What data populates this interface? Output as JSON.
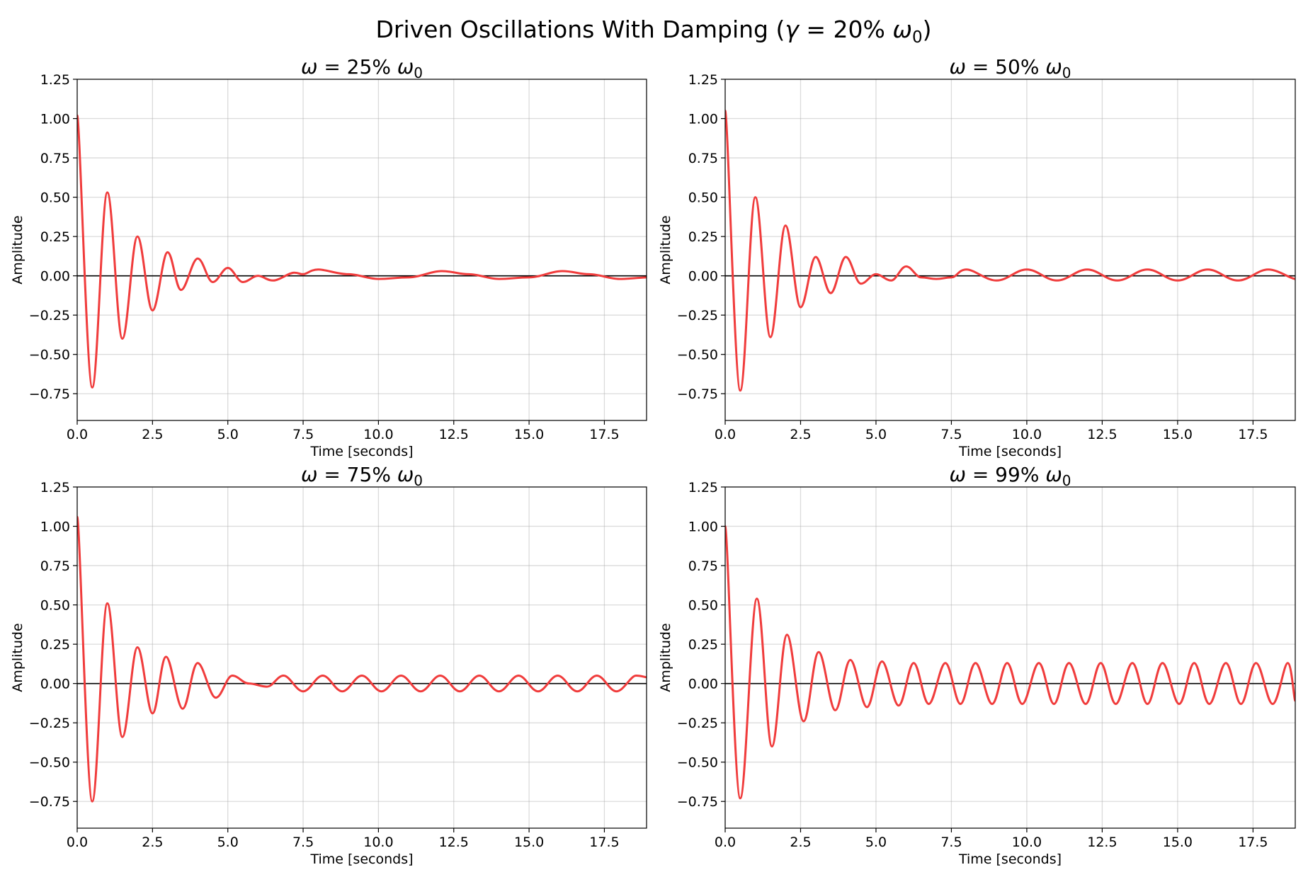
{
  "figure": {
    "title_main": "Driven Oscillations With Damping (",
    "title_gamma": "γ",
    "title_mid": " = 20% ",
    "title_omega": "ω",
    "title_sub": "0",
    "title_end": ")"
  },
  "colors": {
    "curve": "#f03c3c",
    "zero_line": "#000000",
    "grid": "#b0b0b0"
  },
  "chart_data": [
    {
      "type": "line",
      "title_omega": "ω",
      "title_text": " = 25% ",
      "title_omega0": "ω",
      "title_sub": "0",
      "xlabel": "Time [seconds]",
      "ylabel": "Amplitude",
      "xlim": [
        0,
        18.9
      ],
      "ylim": [
        -0.92,
        1.25
      ],
      "xticks": [
        "0.0",
        "2.5",
        "5.0",
        "7.5",
        "10.0",
        "12.5",
        "15.0",
        "17.5"
      ],
      "yticks": [
        "−0.75",
        "−0.50",
        "−0.25",
        "0.00",
        "0.25",
        "0.50",
        "0.75",
        "1.00",
        "1.25"
      ],
      "grid": true,
      "series": [
        {
          "x": [
            0,
            0.5,
            1.0,
            1.5,
            2.0,
            2.5,
            3.0,
            3.45,
            4.0,
            4.5,
            5.0,
            5.5,
            6.0,
            6.5,
            7.2,
            7.5,
            8.0,
            9.0,
            10.0,
            11.0,
            12.1,
            13.0,
            14.0,
            15.0,
            16.1,
            17.0,
            18.0,
            18.9
          ],
          "y": [
            1.02,
            -0.71,
            0.53,
            -0.4,
            0.25,
            -0.22,
            0.15,
            -0.09,
            0.11,
            -0.04,
            0.05,
            -0.04,
            0.0,
            -0.03,
            0.02,
            0.01,
            0.04,
            0.01,
            -0.02,
            -0.01,
            0.03,
            0.01,
            -0.02,
            -0.01,
            0.03,
            0.01,
            -0.02,
            -0.01
          ]
        }
      ]
    },
    {
      "type": "line",
      "title_omega": "ω",
      "title_text": " = 50% ",
      "title_omega0": "ω",
      "title_sub": "0",
      "xlabel": "Time [seconds]",
      "ylabel": "Amplitude",
      "xlim": [
        0,
        18.9
      ],
      "ylim": [
        -0.92,
        1.25
      ],
      "xticks": [
        "0.0",
        "2.5",
        "5.0",
        "7.5",
        "10.0",
        "12.5",
        "15.0",
        "17.5"
      ],
      "yticks": [
        "−0.75",
        "−0.50",
        "−0.25",
        "0.00",
        "0.25",
        "0.50",
        "0.75",
        "1.00",
        "1.25"
      ],
      "grid": true,
      "series": [
        {
          "x": [
            0,
            0.5,
            1.0,
            1.5,
            2.0,
            2.5,
            3.0,
            3.5,
            4.0,
            4.5,
            5.0,
            5.5,
            6.0,
            6.5,
            7.0,
            7.5,
            8.0,
            9.0,
            10.0,
            11.0,
            12.0,
            13.0,
            14.0,
            15.0,
            16.0,
            17.0,
            18.0,
            18.9
          ],
          "y": [
            1.05,
            -0.73,
            0.5,
            -0.39,
            0.32,
            -0.2,
            0.12,
            -0.11,
            0.12,
            -0.05,
            0.01,
            -0.03,
            0.06,
            -0.01,
            -0.02,
            -0.01,
            0.04,
            -0.03,
            0.04,
            -0.03,
            0.04,
            -0.03,
            0.04,
            -0.03,
            0.04,
            -0.03,
            0.04,
            -0.02
          ]
        }
      ]
    },
    {
      "type": "line",
      "title_omega": "ω",
      "title_text": " = 75% ",
      "title_omega0": "ω",
      "title_sub": "0",
      "xlabel": "Time [seconds]",
      "ylabel": "Amplitude",
      "xlim": [
        0,
        18.9
      ],
      "ylim": [
        -0.92,
        1.25
      ],
      "xticks": [
        "0.0",
        "2.5",
        "5.0",
        "7.5",
        "10.0",
        "12.5",
        "15.0",
        "17.5"
      ],
      "yticks": [
        "−0.75",
        "−0.50",
        "−0.25",
        "0.00",
        "0.25",
        "0.50",
        "0.75",
        "1.00",
        "1.25"
      ],
      "grid": true,
      "series": [
        {
          "x": [
            0,
            0.5,
            1.0,
            1.5,
            2.0,
            2.5,
            2.95,
            3.5,
            4.0,
            4.6,
            5.15,
            5.7,
            6.3,
            6.85,
            7.5,
            8.15,
            8.8,
            9.45,
            10.1,
            10.75,
            11.4,
            12.05,
            12.7,
            13.35,
            14.0,
            14.65,
            15.3,
            15.95,
            16.6,
            17.25,
            17.9,
            18.55,
            18.9
          ],
          "y": [
            1.06,
            -0.75,
            0.51,
            -0.34,
            0.23,
            -0.19,
            0.17,
            -0.16,
            0.13,
            -0.09,
            0.05,
            0.0,
            -0.02,
            0.05,
            -0.05,
            0.05,
            -0.05,
            0.05,
            -0.05,
            0.05,
            -0.05,
            0.05,
            -0.05,
            0.05,
            -0.05,
            0.05,
            -0.05,
            0.05,
            -0.05,
            0.05,
            -0.05,
            0.05,
            0.04
          ]
        }
      ]
    },
    {
      "type": "line",
      "title_omega": "ω",
      "title_text": " = 99% ",
      "title_omega0": "ω",
      "title_sub": "0",
      "xlabel": "Time [seconds]",
      "ylabel": "Amplitude",
      "xlim": [
        0,
        18.9
      ],
      "ylim": [
        -0.92,
        1.25
      ],
      "xticks": [
        "0.0",
        "2.5",
        "5.0",
        "7.5",
        "10.0",
        "12.5",
        "15.0",
        "17.5"
      ],
      "yticks": [
        "−0.75",
        "−0.50",
        "−0.25",
        "0.00",
        "0.25",
        "0.50",
        "0.75",
        "1.00",
        "1.25"
      ],
      "grid": true,
      "series": [
        {
          "x": [
            0,
            0.5,
            1.05,
            1.55,
            2.05,
            2.6,
            3.1,
            3.65,
            4.15,
            4.7,
            5.2,
            5.75,
            6.25,
            6.75,
            7.3,
            7.8,
            8.3,
            8.85,
            9.35,
            9.85,
            10.4,
            10.9,
            11.4,
            11.95,
            12.45,
            12.95,
            13.5,
            14.0,
            14.5,
            15.05,
            15.55,
            16.05,
            16.6,
            17.1,
            17.6,
            18.15,
            18.65,
            18.9
          ],
          "y": [
            1.0,
            -0.73,
            0.54,
            -0.4,
            0.31,
            -0.24,
            0.2,
            -0.17,
            0.15,
            -0.15,
            0.14,
            -0.14,
            0.13,
            -0.13,
            0.13,
            -0.13,
            0.13,
            -0.13,
            0.13,
            -0.13,
            0.13,
            -0.13,
            0.13,
            -0.13,
            0.13,
            -0.13,
            0.13,
            -0.13,
            0.13,
            -0.13,
            0.13,
            -0.13,
            0.13,
            -0.13,
            0.13,
            -0.13,
            0.13,
            -0.11
          ]
        }
      ]
    }
  ]
}
